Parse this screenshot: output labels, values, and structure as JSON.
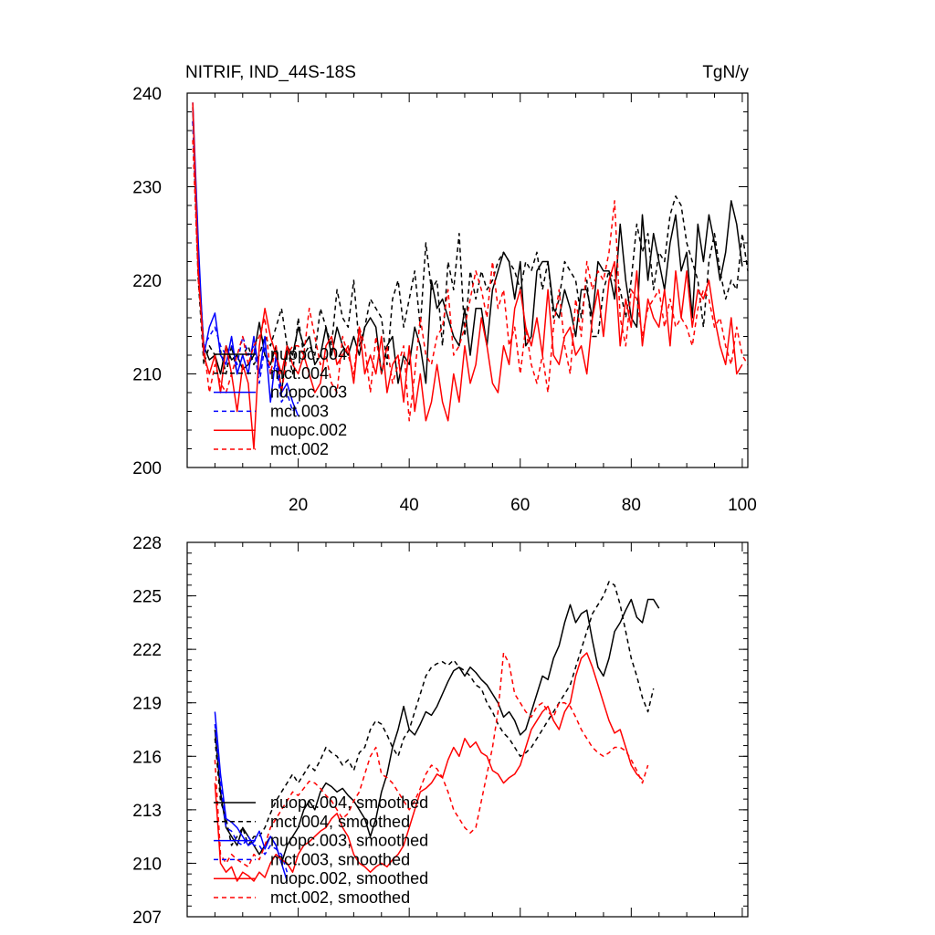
{
  "header": {
    "left_title": "NITRIF, IND_44S-18S",
    "right_title": "TgN/y"
  },
  "colors": {
    "nuopc_004": "#000000",
    "mct_004": "#000000",
    "nuopc_003": "#0000ff",
    "mct_003": "#0000ff",
    "nuopc_002": "#ff0000",
    "mct_002": "#ff0000"
  },
  "chart_data": [
    {
      "type": "line",
      "title": "NITRIF, IND_44S-18S",
      "units": "TgN/y",
      "xlim": [
        0,
        101
      ],
      "ylim": [
        200,
        240
      ],
      "xticks": [
        20,
        40,
        60,
        80,
        100
      ],
      "yticks": [
        200,
        210,
        220,
        230,
        240
      ],
      "legend_position": "lower-left",
      "series": [
        {
          "name": "nuopc.004",
          "color": "#000000",
          "dash": "solid",
          "x_start": 1,
          "values": [
            238.5,
            222,
            213,
            211.5,
            212,
            210,
            213,
            211.5,
            212,
            210.5,
            211,
            212,
            215.5,
            212,
            211,
            213,
            208,
            213,
            212,
            215,
            213,
            214,
            211,
            212,
            215,
            212,
            215,
            213,
            212,
            214,
            212,
            215,
            216,
            215,
            210,
            213,
            214,
            209,
            212,
            211,
            215,
            213,
            209,
            220,
            217,
            218,
            216,
            214,
            213,
            217,
            212,
            217,
            217,
            213,
            219,
            221,
            223,
            222,
            218,
            222,
            213,
            214,
            221,
            222,
            222,
            217,
            216,
            219,
            217,
            214,
            219,
            219,
            216,
            222,
            221,
            221,
            218,
            226,
            220,
            216,
            215,
            227,
            220,
            225,
            222,
            219,
            224,
            227,
            221,
            223,
            216,
            226,
            222,
            227,
            224,
            220,
            223,
            228.5,
            226,
            221.5
          ]
        },
        {
          "name": "mct.004",
          "color": "#000000",
          "dash": "dashed",
          "x_start": 1,
          "values": [
            237,
            220,
            211,
            213,
            212,
            212.5,
            210,
            213,
            210,
            212,
            213,
            211,
            212,
            214,
            213,
            215,
            217,
            213,
            210,
            216,
            212,
            213,
            212,
            217,
            215,
            213,
            219,
            216,
            215,
            220,
            213,
            215,
            218,
            217,
            216,
            211,
            218,
            220,
            215,
            218,
            221,
            215,
            224,
            219,
            220,
            213,
            222,
            219,
            225,
            214,
            221,
            218,
            221,
            219,
            220,
            222,
            223,
            222,
            221,
            219,
            222,
            221,
            223,
            219,
            222,
            216,
            218,
            222,
            221,
            220,
            216,
            220,
            214,
            214,
            219,
            221,
            220,
            219,
            216,
            220,
            226,
            223,
            225,
            219,
            223,
            222,
            227,
            229,
            228,
            224,
            222,
            220,
            215,
            222,
            225,
            221,
            218,
            220,
            219,
            225,
            221
          ]
        },
        {
          "name": "nuopc.003",
          "color": "#0000ff",
          "dash": "solid",
          "x_start": 1,
          "values": [
            239,
            224,
            212,
            215,
            216.5,
            212,
            211,
            214,
            210,
            212,
            210,
            214,
            210,
            214,
            207,
            212,
            208,
            209,
            207,
            205.5
          ]
        },
        {
          "name": "mct.003",
          "color": "#0000ff",
          "dash": "dashed",
          "x_start": 1,
          "values": [
            237,
            222,
            213,
            214,
            215,
            213,
            212,
            213,
            211,
            214,
            212,
            213,
            209,
            213,
            210,
            211,
            207,
            208,
            206,
            207
          ]
        },
        {
          "name": "nuopc.002",
          "color": "#ff0000",
          "dash": "solid",
          "x_start": 1,
          "values": [
            239,
            221,
            212,
            210,
            212,
            208,
            213,
            210,
            206,
            211,
            209,
            202,
            213,
            217,
            214,
            212,
            210,
            213,
            211,
            210,
            212,
            210,
            208,
            209,
            213,
            214,
            211,
            212,
            213,
            209,
            215,
            210,
            212,
            210,
            214,
            208,
            211,
            212,
            207,
            213,
            206,
            210,
            205,
            207,
            211,
            207,
            205,
            210,
            207,
            213,
            209,
            211,
            216,
            213,
            209,
            208,
            213,
            211,
            217,
            219,
            215,
            213,
            216,
            212,
            219,
            212,
            211,
            214,
            215,
            212,
            213,
            210,
            216,
            219,
            214,
            220,
            222,
            213,
            218,
            215,
            221,
            213,
            218,
            216,
            215,
            219,
            213,
            221,
            216,
            221,
            215,
            219,
            218,
            220,
            216,
            213,
            211,
            216,
            210,
            211
          ]
        },
        {
          "name": "mct.002",
          "color": "#ff0000",
          "dash": "dashed",
          "x_start": 1,
          "values": [
            235,
            220,
            213,
            208,
            211,
            209,
            208,
            210,
            212,
            214,
            211,
            213,
            214,
            216,
            210,
            213,
            208,
            212,
            213,
            213,
            212,
            217,
            214,
            211,
            212,
            209,
            208,
            214,
            212,
            210,
            215,
            213,
            208,
            214,
            210,
            213,
            209,
            211,
            213,
            205,
            210,
            216,
            212,
            211,
            214,
            215,
            219,
            212,
            213,
            215,
            218,
            221,
            219,
            216,
            222,
            217,
            219,
            213,
            215,
            210,
            215,
            211,
            209,
            212,
            208,
            215,
            219,
            213,
            210,
            218,
            214,
            222,
            219,
            221,
            220,
            223,
            228.5,
            216,
            213,
            219,
            218,
            214,
            217,
            218,
            219,
            215,
            218,
            215,
            216,
            215,
            213,
            217,
            219,
            218,
            215,
            216,
            213,
            211,
            215,
            212,
            211
          ]
        }
      ]
    },
    {
      "type": "line",
      "xlim": [
        0,
        101
      ],
      "ylim": [
        207,
        228
      ],
      "yticks": [
        207,
        210,
        213,
        216,
        219,
        222,
        225,
        228
      ],
      "xticks": [
        20,
        40,
        60,
        80,
        100
      ],
      "legend_position": "lower-left",
      "series": [
        {
          "name": "nuopc.004, smoothed",
          "color": "#000000",
          "dash": "solid",
          "x_start": 5,
          "values": [
            217.5,
            214,
            212,
            211.5,
            211,
            212,
            211.5,
            211,
            210.5,
            211,
            211.5,
            211,
            210,
            211,
            211.5,
            212,
            213,
            213.5,
            213,
            214,
            214.5,
            214.3,
            214,
            214.2,
            213.8,
            213.5,
            213,
            212.5,
            211.5,
            212.5,
            214,
            215,
            216.5,
            217.5,
            218.8,
            217.5,
            217.2,
            217.8,
            218.5,
            218.3,
            218.8,
            219.5,
            220.2,
            220.8,
            221,
            220.5,
            221,
            220.7,
            220.3,
            220,
            219.5,
            219,
            218.2,
            218.5,
            218,
            217.2,
            217.5,
            218.5,
            219.5,
            220.5,
            220.3,
            221.5,
            222.2,
            223.5,
            224.5,
            223.5,
            224,
            224.2,
            222.5,
            221,
            220.5,
            221.5,
            223,
            223.5,
            224.2,
            224.8,
            223.8,
            223.5,
            224.8,
            224.8,
            224.3
          ]
        },
        {
          "name": "mct.004, smoothed",
          "color": "#000000",
          "dash": "dashed",
          "x_start": 5,
          "values": [
            217,
            213.5,
            212.5,
            211,
            211.5,
            212,
            211,
            211.5,
            211.5,
            212,
            212.8,
            213.5,
            214,
            214.5,
            215,
            214.5,
            215,
            215.5,
            215.2,
            215.8,
            216.5,
            216.2,
            216,
            215.5,
            215.8,
            215.2,
            216.2,
            216.5,
            217.5,
            218,
            217.8,
            217.2,
            216.5,
            216,
            217,
            217.5,
            218.5,
            219.5,
            220.5,
            221,
            221.2,
            221.3,
            221.1,
            221.4,
            221,
            220.8,
            220.5,
            220,
            219.8,
            219,
            218.5,
            217.8,
            217.3,
            217,
            216.5,
            216,
            216.2,
            216.5,
            217,
            217.5,
            218,
            218.5,
            219,
            219.5,
            220,
            221,
            222,
            223,
            224,
            224.5,
            225,
            225.8,
            225.6,
            224.5,
            223,
            221.5,
            220.5,
            219.3,
            218.5,
            219.8
          ]
        },
        {
          "name": "nuopc.003, smoothed",
          "color": "#0000ff",
          "dash": "solid",
          "x_start": 5,
          "values": [
            218.5,
            215,
            212.5,
            212.3,
            212,
            211.5,
            211,
            211.2,
            211.8,
            210.8,
            211.5,
            211,
            210,
            209
          ]
        },
        {
          "name": "mct.003, smoothed",
          "color": "#0000ff",
          "dash": "dashed",
          "x_start": 5,
          "values": [
            217.8,
            214.5,
            212,
            211.8,
            211.2,
            211,
            211.5,
            211,
            211,
            210.5,
            211,
            210.8,
            210.5,
            209.5
          ]
        },
        {
          "name": "nuopc.002, smoothed",
          "color": "#ff0000",
          "dash": "solid",
          "x_start": 5,
          "values": [
            214.5,
            210,
            209.5,
            209.8,
            209,
            209.5,
            209.3,
            209,
            209.5,
            209.2,
            210,
            210.5,
            210.2,
            210,
            209.5,
            210.5,
            211,
            211.2,
            211.5,
            211.8,
            212,
            212.5,
            212.8,
            212,
            211.5,
            210.5,
            210,
            209.8,
            209.5,
            209.8,
            210,
            209.8,
            210.2,
            210.5,
            211,
            212,
            213,
            214,
            214.2,
            214.5,
            215,
            214.8,
            215.8,
            216.5,
            216,
            217,
            216.5,
            216.8,
            216.2,
            216,
            215.2,
            215,
            214.5,
            214.8,
            215,
            215.5,
            216.5,
            217.5,
            218,
            218.5,
            218.8,
            218,
            217.5,
            218.5,
            219,
            220.5,
            221.5,
            221.8,
            221,
            220,
            219,
            218,
            217.3,
            217.5,
            216.5,
            215.5,
            215,
            214.7
          ]
        },
        {
          "name": "mct.002, smoothed",
          "color": "#ff0000",
          "dash": "dashed",
          "x_start": 5,
          "values": [
            215.8,
            210.5,
            210,
            210.5,
            210.2,
            210,
            209.8,
            210.5,
            210.2,
            211,
            212,
            212.5,
            213,
            213.5,
            214,
            213.8,
            214.2,
            214.6,
            214.5,
            214.2,
            213.8,
            213.5,
            213,
            212.5,
            212.8,
            213.5,
            214,
            215,
            216,
            216.5,
            215,
            214.8,
            214.5,
            214,
            213.5,
            213,
            213.5,
            214.2,
            215,
            215.5,
            215.3,
            214.8,
            214,
            213,
            212.5,
            212,
            211.7,
            212,
            213.5,
            215,
            216.5,
            218.5,
            221.8,
            221.2,
            219.5,
            219,
            218.5,
            218.2,
            218.8,
            219,
            218.5,
            218.2,
            219,
            219,
            218.8,
            218.2,
            217.5,
            217,
            216.5,
            216.2,
            216,
            216.2,
            216.5,
            216.5,
            216.3,
            215.8,
            215.2,
            214.5,
            215.5
          ]
        }
      ]
    }
  ]
}
